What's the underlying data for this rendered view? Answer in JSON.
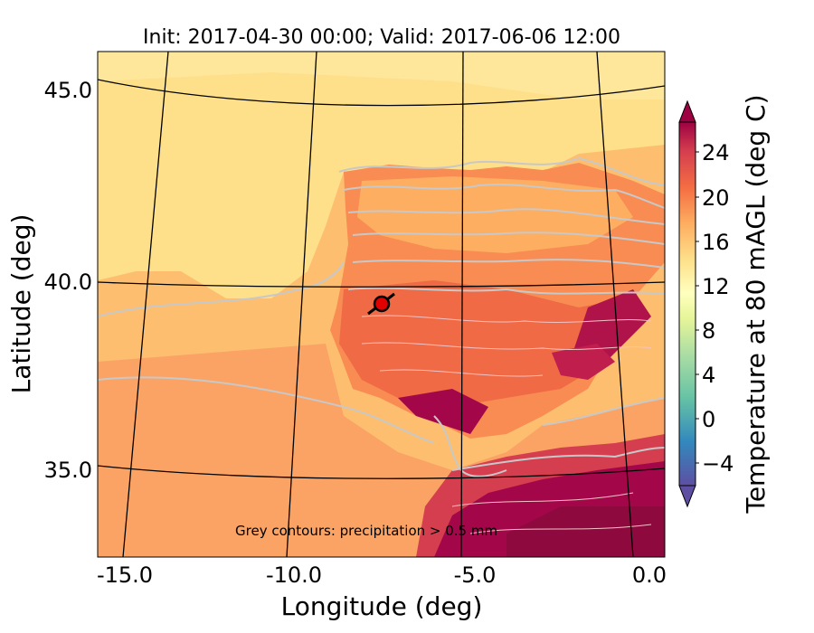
{
  "title": "Init: 2017-04-30 00:00; Valid: 2017-06-06 12:00",
  "xlabel": "Longitude (deg)",
  "ylabel": "Latitude (deg)",
  "annotation": "Grey contours: precipitation > 0.5 mm",
  "x_ticks": [
    {
      "label": "-15.0",
      "value": -15.0
    },
    {
      "label": "-10.0",
      "value": -10.0
    },
    {
      "label": "-5.0",
      "value": -5.0
    },
    {
      "label": "0.0",
      "value": 0.0
    }
  ],
  "y_ticks": [
    {
      "label": "45.0",
      "value": 45.0
    },
    {
      "label": "40.0",
      "value": 40.0
    },
    {
      "label": "35.0",
      "value": 35.0
    }
  ],
  "colorbar": {
    "label": "Temperature at 80 mAGL (deg C)",
    "ticks": [
      "24",
      "20",
      "16",
      "12",
      "8",
      "4",
      "0",
      "−4"
    ],
    "colors": {
      "cold": "#5e4fa2",
      "cool": "#3288bd",
      "teal": "#66c2a5",
      "green": "#abdda4",
      "pale": "#e6f598",
      "cream": "#ffffbf",
      "yellow": "#fee08b",
      "orange": "#fdae61",
      "dark_orange": "#f46d43",
      "red": "#d53e4f",
      "crimson": "#9e0142"
    }
  },
  "marker": {
    "lon": -7.7,
    "lat": 39.3,
    "color": "#e00000"
  }
}
